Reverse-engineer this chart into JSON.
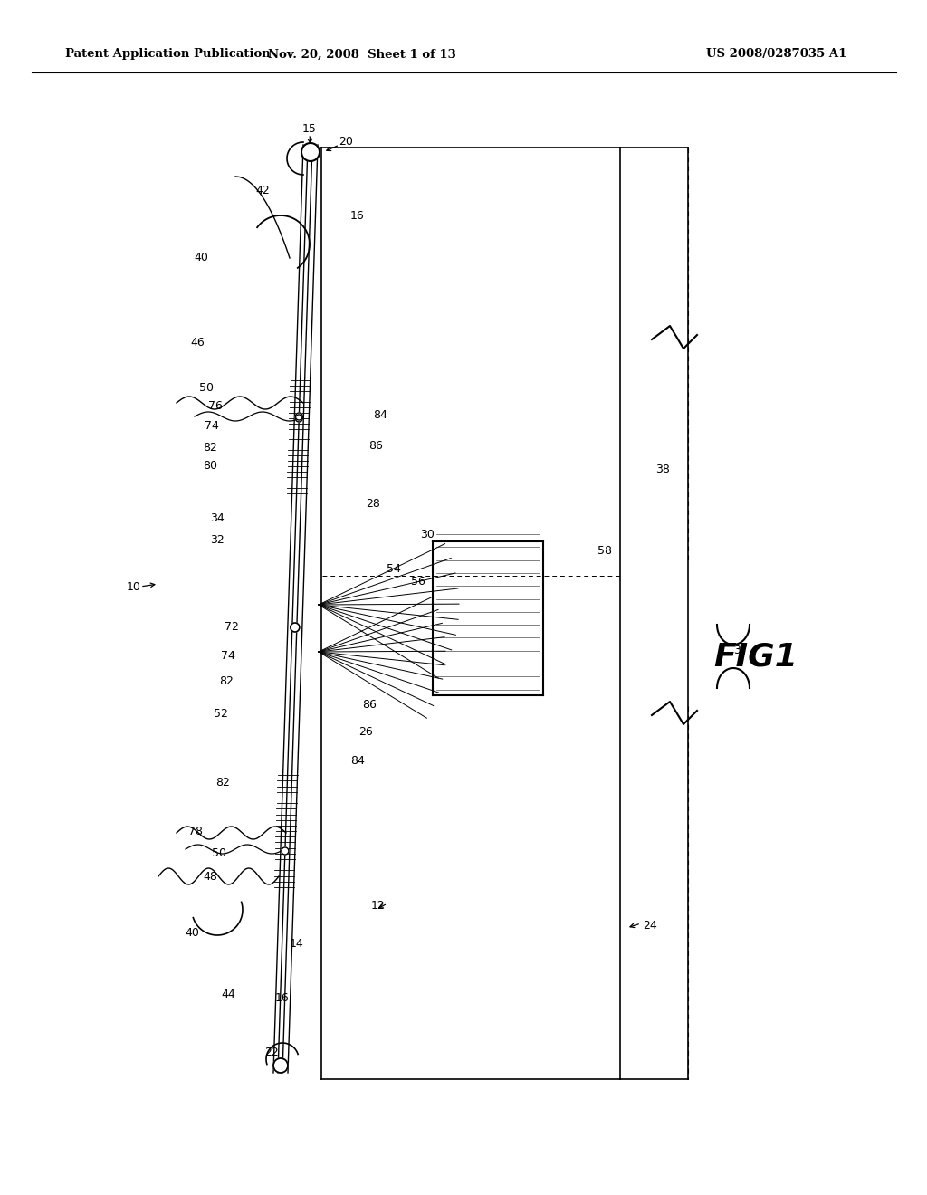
{
  "bg_color": "#ffffff",
  "header_text": "Patent Application Publication",
  "header_date": "Nov. 20, 2008  Sheet 1 of 13",
  "header_patent": "US 2008/0287035 A1",
  "fig_label": "FIG1",
  "line_color": "#000000"
}
